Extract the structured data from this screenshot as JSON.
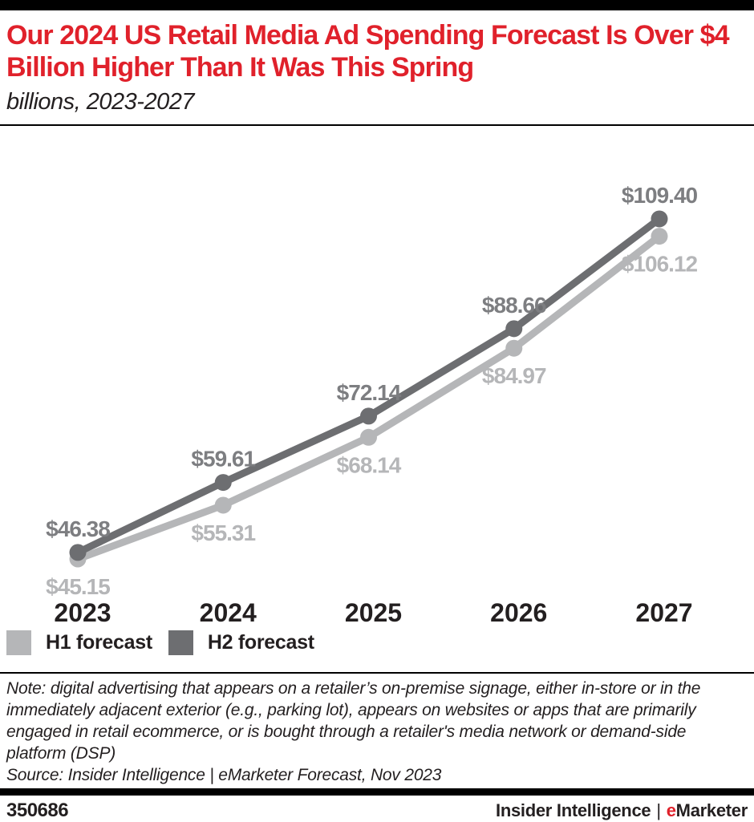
{
  "header": {
    "title": "Our 2024 US Retail Media Ad Spending Forecast Is Over $4 Billion Higher Than It Was This Spring",
    "subtitle": "billions, 2023-2027"
  },
  "chart_data": {
    "type": "line",
    "title": "Our 2024 US Retail Media Ad Spending Forecast Is Over $4 Billion Higher Than It Was This Spring",
    "subtitle": "billions, 2023-2027",
    "categories": [
      "2023",
      "2024",
      "2025",
      "2026",
      "2027"
    ],
    "series": [
      {
        "name": "H1 forecast",
        "values": [
          45.15,
          55.31,
          68.14,
          84.97,
          106.12
        ],
        "color": "#b5b6b8",
        "label_color": "#b5b6b8",
        "label_position": "below"
      },
      {
        "name": "H2 forecast",
        "values": [
          46.38,
          59.61,
          72.14,
          88.66,
          109.4
        ],
        "color": "#6d6e71",
        "label_color": "#7d7e81",
        "label_position": "above"
      }
    ],
    "unit_prefix": "$",
    "ylim": [
      40,
      115
    ],
    "grid": false,
    "axes_visible": false,
    "legend_position": "bottom-left",
    "xlabel": "",
    "ylabel": ""
  },
  "legend": {
    "items": [
      {
        "label": "H1 forecast",
        "color": "#b5b6b8"
      },
      {
        "label": "H2 forecast",
        "color": "#6d6e71"
      }
    ]
  },
  "note": "Note: digital advertising that appears on a retailer’s on-premise signage, either in-store or in the immediately adjacent exterior (e.g., parking lot), appears on websites or apps that are primarily engaged in retail ecommerce, or is bought through a retailer's media network or demand-side platform (DSP)",
  "source": "Source: Insider Intelligence | eMarketer Forecast, Nov 2023",
  "footer": {
    "chart_id": "350686",
    "brand": {
      "part1": "Insider Intelligence",
      "separator": "|",
      "e": "e",
      "rest": "Marketer"
    }
  },
  "colors": {
    "accent_red": "#e0212b",
    "h1_gray": "#b5b6b8",
    "h2_gray": "#6d6e71",
    "text": "#231f20"
  }
}
